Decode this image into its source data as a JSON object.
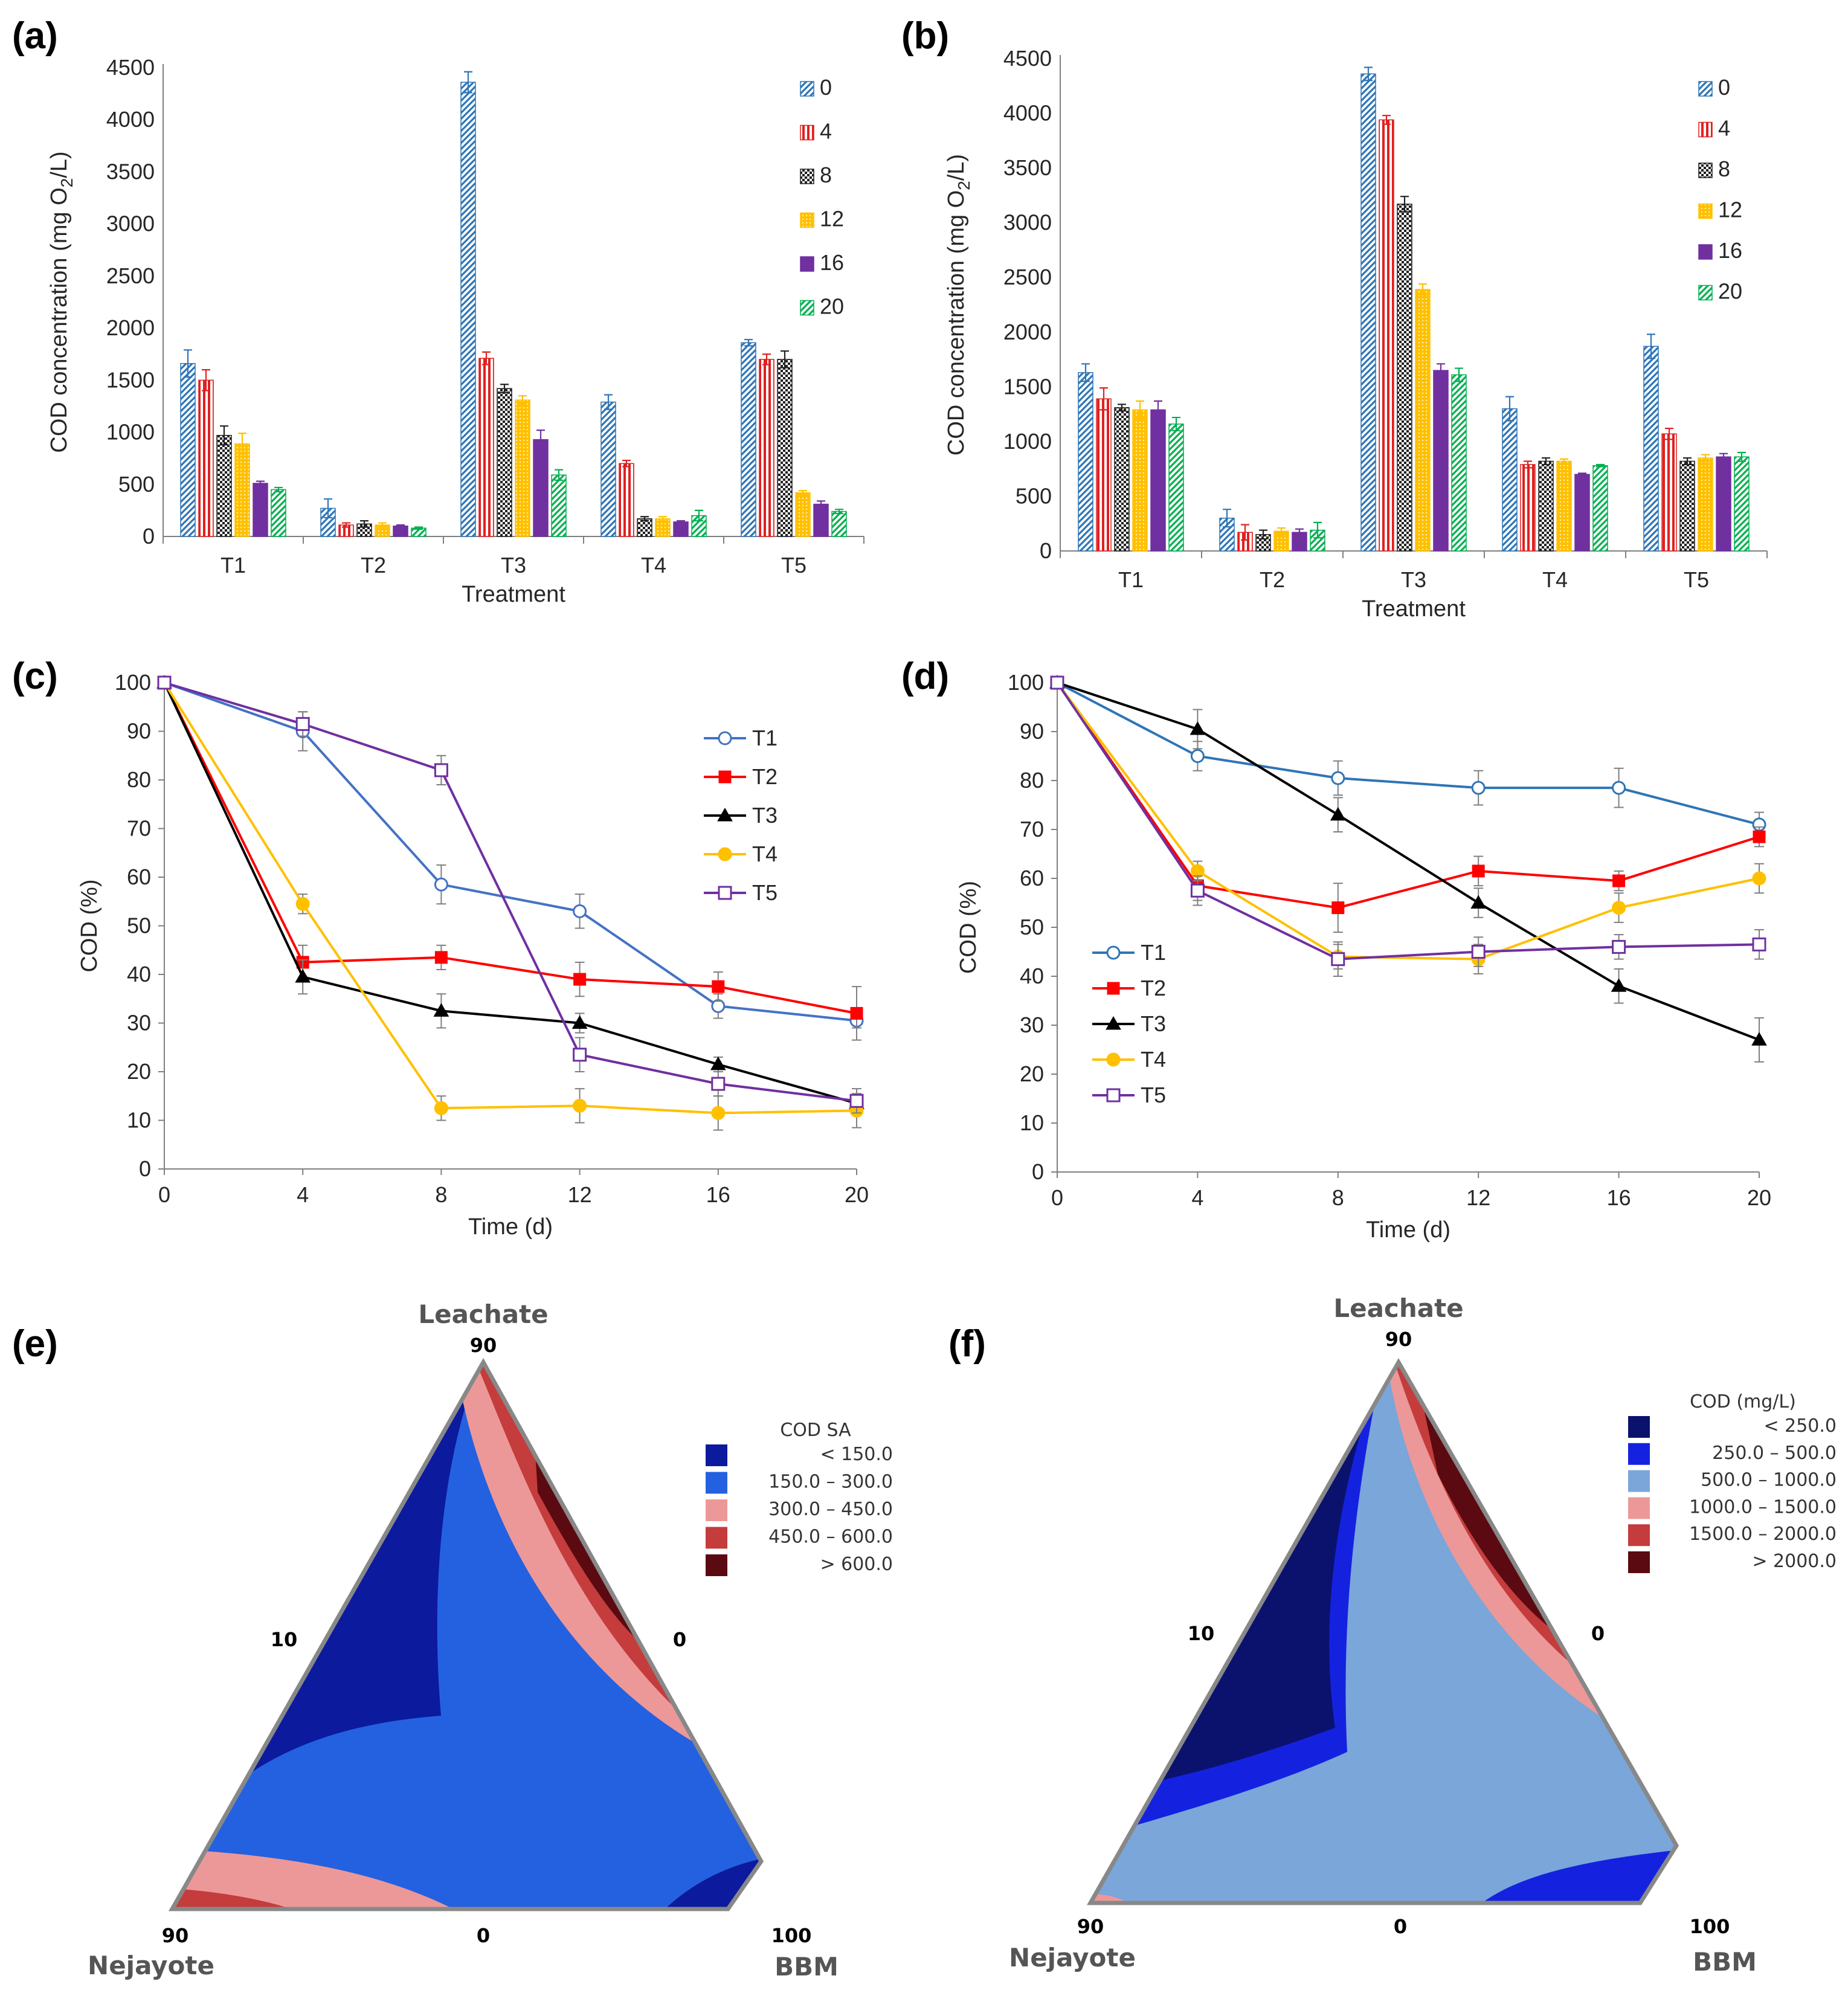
{
  "chart_data": [
    {
      "panel": "(a)",
      "type": "bar",
      "xlabel": "Treatment",
      "ylabel": "COD concentration  (mg O2/L)",
      "ylabel_main": "COD concentration  (mg O",
      "ylabel_sub": "2",
      "ylabel_end": "/L)",
      "ylim": [
        0,
        4500
      ],
      "yticks": [
        0,
        500,
        1000,
        1500,
        2000,
        2500,
        3000,
        3500,
        4000,
        4500
      ],
      "categories": [
        "T1",
        "T2",
        "T3",
        "T4",
        "T5"
      ],
      "series": [
        {
          "name": "0",
          "color": "#2e75b6",
          "values": [
            1660,
            270,
            4360,
            1290,
            1860
          ],
          "err": [
            130,
            90,
            100,
            70,
            30
          ]
        },
        {
          "name": "4",
          "color": "#e02020",
          "values": [
            1500,
            110,
            1710,
            700,
            1700
          ],
          "err": [
            100,
            20,
            60,
            30,
            50
          ]
        },
        {
          "name": "8",
          "color": "#222222",
          "values": [
            970,
            120,
            1420,
            170,
            1700
          ],
          "err": [
            90,
            30,
            40,
            20,
            80
          ]
        },
        {
          "name": "12",
          "color": "#ffc000",
          "values": [
            890,
            110,
            1310,
            170,
            420
          ],
          "err": [
            100,
            20,
            40,
            20,
            20
          ]
        },
        {
          "name": "16",
          "color": "#7030a0",
          "values": [
            510,
            100,
            930,
            140,
            310
          ],
          "err": [
            20,
            10,
            90,
            10,
            30
          ]
        },
        {
          "name": "20",
          "color": "#00b050",
          "values": [
            450,
            80,
            590,
            200,
            240
          ],
          "err": [
            20,
            10,
            50,
            50,
            20
          ]
        }
      ]
    },
    {
      "panel": "(b)",
      "type": "bar",
      "xlabel": "Treatment",
      "ylabel": "COD concentration  (mg O2/L)",
      "ylabel_main": "COD concentration  (mg O",
      "ylabel_sub": "2",
      "ylabel_end": "/L)",
      "ylim": [
        0,
        4500
      ],
      "yticks": [
        0,
        500,
        1000,
        1500,
        2000,
        2500,
        3000,
        3500,
        4000,
        4500
      ],
      "categories": [
        "T1",
        "T2",
        "T3",
        "T4",
        "T5"
      ],
      "series": [
        {
          "name": "0",
          "color": "#2e75b6",
          "values": [
            1630,
            300,
            4360,
            1300,
            1870
          ],
          "err": [
            80,
            80,
            60,
            110,
            110
          ]
        },
        {
          "name": "4",
          "color": "#e02020",
          "values": [
            1390,
            170,
            3940,
            790,
            1070
          ],
          "err": [
            100,
            70,
            40,
            30,
            50
          ]
        },
        {
          "name": "8",
          "color": "#222222",
          "values": [
            1310,
            150,
            3170,
            820,
            820
          ],
          "err": [
            30,
            40,
            70,
            30,
            30
          ]
        },
        {
          "name": "12",
          "color": "#ffc000",
          "values": [
            1290,
            180,
            2390,
            820,
            850
          ],
          "err": [
            80,
            30,
            50,
            20,
            30
          ]
        },
        {
          "name": "16",
          "color": "#7030a0",
          "values": [
            1290,
            170,
            1650,
            700,
            860
          ],
          "err": [
            80,
            30,
            60,
            10,
            30
          ]
        },
        {
          "name": "20",
          "color": "#00b050",
          "values": [
            1160,
            190,
            1610,
            780,
            860
          ],
          "err": [
            60,
            70,
            60,
            10,
            40
          ]
        }
      ]
    },
    {
      "panel": "(c)",
      "type": "line",
      "xlabel": "Time (d)",
      "ylabel": "COD (%)",
      "x": [
        0,
        4,
        8,
        12,
        16,
        20
      ],
      "xlim": [
        0,
        20
      ],
      "ylim": [
        0,
        100
      ],
      "yticks": [
        0,
        10,
        20,
        30,
        40,
        50,
        60,
        70,
        80,
        90,
        100
      ],
      "series": [
        {
          "name": "T1",
          "color": "#4472c4",
          "marker": "circle-open",
          "values": [
            100,
            90,
            58.5,
            53,
            33.5,
            30.5
          ],
          "err": [
            0,
            4,
            4,
            3.5,
            2.5,
            1.5
          ]
        },
        {
          "name": "T2",
          "color": "#ff0000",
          "marker": "square-filled",
          "values": [
            100,
            42.5,
            43.5,
            39,
            37.5,
            32
          ],
          "err": [
            0,
            3.5,
            2.5,
            3.5,
            3,
            5.5
          ]
        },
        {
          "name": "T3",
          "color": "#000000",
          "marker": "triangle-filled",
          "values": [
            100,
            39.5,
            32.5,
            30,
            21.5,
            13.5
          ],
          "err": [
            0,
            3.5,
            3.5,
            2,
            1.5,
            1.5
          ]
        },
        {
          "name": "T4",
          "color": "#ffc000",
          "marker": "circle-filled",
          "values": [
            100,
            54.5,
            12.5,
            13,
            11.5,
            12
          ],
          "err": [
            0,
            2,
            2.5,
            3.5,
            3.5,
            3.5
          ]
        },
        {
          "name": "T5",
          "color": "#7030a0",
          "marker": "square-open",
          "values": [
            100,
            91.5,
            82,
            23.5,
            17.5,
            14
          ],
          "err": [
            0,
            2.5,
            3,
            3.5,
            2.5,
            2.5
          ]
        }
      ]
    },
    {
      "panel": "(d)",
      "type": "line",
      "xlabel": "Time (d)",
      "ylabel": "COD (%)",
      "x": [
        0,
        4,
        8,
        12,
        16,
        20
      ],
      "xlim": [
        0,
        20
      ],
      "ylim": [
        0,
        100
      ],
      "yticks": [
        0,
        10,
        20,
        30,
        40,
        50,
        60,
        70,
        80,
        90,
        100
      ],
      "series": [
        {
          "name": "T1",
          "color": "#2e75b6",
          "marker": "circle-open",
          "values": [
            100,
            85,
            80.5,
            78.5,
            78.5,
            71
          ],
          "err": [
            0,
            3,
            3.5,
            3.5,
            4,
            2.5
          ]
        },
        {
          "name": "T2",
          "color": "#ff0000",
          "marker": "square-filled",
          "values": [
            100,
            58.5,
            54,
            61.5,
            59.5,
            68.5
          ],
          "err": [
            0,
            3,
            5,
            3,
            2,
            2
          ]
        },
        {
          "name": "T3",
          "color": "#000000",
          "marker": "triangle-filled",
          "values": [
            100,
            90.5,
            73,
            55,
            38,
            27
          ],
          "err": [
            0,
            4,
            3.5,
            3,
            3.5,
            4.5
          ]
        },
        {
          "name": "T4",
          "color": "#ffc000",
          "marker": "circle-filled",
          "values": [
            100,
            61.5,
            44,
            43.5,
            54,
            60
          ],
          "err": [
            0,
            2,
            2.5,
            3,
            3,
            3
          ]
        },
        {
          "name": "T5",
          "color": "#7030a0",
          "marker": "square-open",
          "values": [
            100,
            57.5,
            43.5,
            45,
            46,
            46.5
          ],
          "err": [
            0,
            3,
            3.5,
            3,
            2.5,
            3
          ]
        }
      ]
    },
    {
      "panel": "(e)",
      "type": "ternary-contour",
      "vertex_labels": {
        "top": "Leachate",
        "left": "Nejayote",
        "right": "BBM"
      },
      "vertex_ticks": {
        "top": "90",
        "left": "90",
        "right": "100"
      },
      "edge_ticks": {
        "left": "10",
        "right": "0",
        "bottom": "0"
      },
      "legend_title": "COD SA",
      "legend": [
        {
          "range": "<   150.0",
          "color": "#0c1a9e"
        },
        {
          "range": "150.0  –   300.0",
          "color": "#2461e0"
        },
        {
          "range": "300.0  –   450.0",
          "color": "#ec9898"
        },
        {
          "range": "450.0  –   600.0",
          "color": "#c43c3c"
        },
        {
          "range": ">   600.0",
          "color": "#5a0a10"
        }
      ]
    },
    {
      "panel": "(f)",
      "type": "ternary-contour",
      "vertex_labels": {
        "top": "Leachate",
        "left": "Nejayote",
        "right": "BBM"
      },
      "vertex_ticks": {
        "top": "90",
        "left": "90",
        "right": "100"
      },
      "edge_ticks": {
        "left": "10",
        "right": "0",
        "bottom": "0"
      },
      "legend_title": "COD (mg/L)",
      "legend": [
        {
          "range": "<     250.0",
          "color": "#0a126e"
        },
        {
          "range": "250.0  –     500.0",
          "color": "#1422e0"
        },
        {
          "range": "500.0  –   1000.0",
          "color": "#7aa6da"
        },
        {
          "range": "1000.0  –   1500.0",
          "color": "#ec9898"
        },
        {
          "range": "1500.0  –   2000.0",
          "color": "#c43c3c"
        },
        {
          "range": ">   2000.0",
          "color": "#5a0a10"
        }
      ]
    }
  ]
}
